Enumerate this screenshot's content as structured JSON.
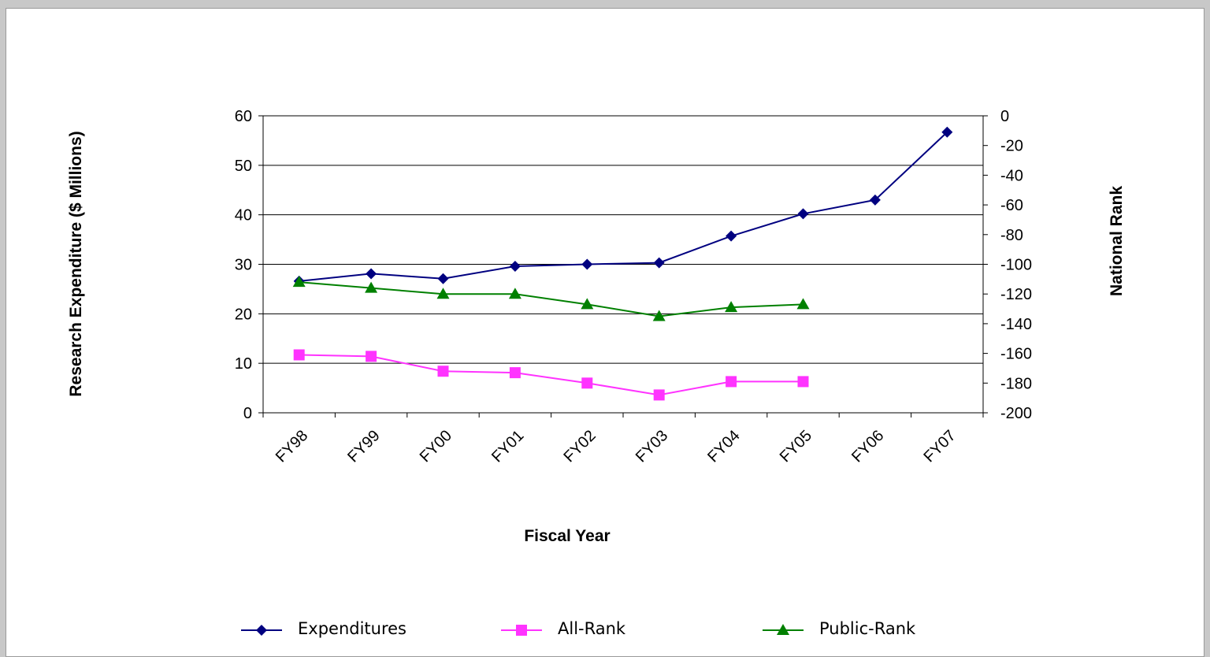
{
  "chart_data": {
    "type": "line",
    "categories": [
      "FY98",
      "FY99",
      "FY00",
      "FY01",
      "FY02",
      "FY03",
      "FY04",
      "FY05",
      "FY06",
      "FY07"
    ],
    "xlabel": "Fiscal Year",
    "ylabel": "Research Expenditure ($ Millions)",
    "y2label": "National Rank",
    "ylim": [
      0,
      60
    ],
    "y_ticks": [
      0,
      10,
      20,
      30,
      40,
      50,
      60
    ],
    "y2lim": [
      -200,
      0
    ],
    "y2_ticks": [
      0,
      -20,
      -40,
      -60,
      -80,
      -100,
      -120,
      -140,
      -160,
      -180,
      -200
    ],
    "grid": true,
    "legend_position": "bottom",
    "series": [
      {
        "name": "Expenditures",
        "axis": "left",
        "marker": "diamond",
        "color": "#000080",
        "values": [
          26.6,
          28.1,
          27.1,
          29.6,
          30.0,
          30.3,
          35.7,
          40.2,
          43.0,
          56.7
        ]
      },
      {
        "name": "All-Rank",
        "axis": "right",
        "marker": "square",
        "color": "#ff33ff",
        "values": [
          -161,
          -162,
          -172,
          -173,
          -180,
          -188,
          -179,
          -179,
          null,
          null
        ]
      },
      {
        "name": "Public-Rank",
        "axis": "right",
        "marker": "triangle",
        "color": "#008000",
        "values": [
          -112,
          -116,
          -120,
          -120,
          -127,
          -135,
          -129,
          -127,
          null,
          null
        ]
      }
    ]
  }
}
